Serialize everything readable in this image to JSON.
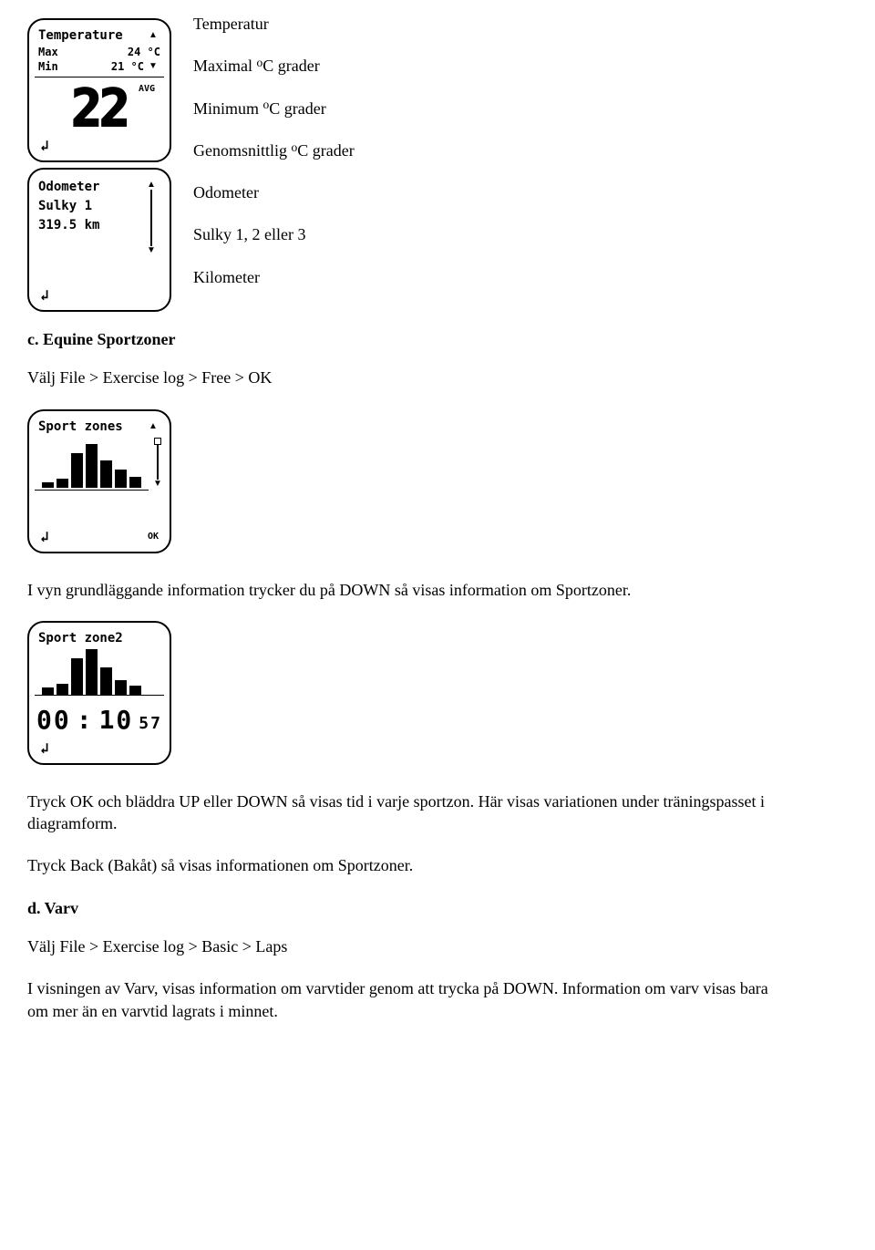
{
  "section_a": {
    "lcd_temperature": {
      "title": "Temperature",
      "row1_label": "Max",
      "row1_value": "24 °C",
      "row2_label": "Min",
      "row2_value": "21 °C",
      "big_value": "22",
      "suffix": "AVG"
    },
    "lcd_odometer": {
      "title": "Odometer",
      "row1": "Sulky 1",
      "row2": "319.5 km"
    },
    "text": {
      "l1": "Temperatur",
      "l2_pre": "Maximal ",
      "l2_sup": "o",
      "l2_post": "C grader",
      "l3_pre": "Minimum ",
      "l3_sup": "o",
      "l3_post": "C grader",
      "l4_pre": "Genomsnittlig ",
      "l4_sup": "o",
      "l4_post": "C grader",
      "l5": "Odometer",
      "l6": "Sulky 1, 2 eller 3",
      "l7": "Kilometer"
    }
  },
  "section_c": {
    "heading": "c. Equine Sportzoner",
    "sub": "Välj File > Exercise log > Free > OK",
    "lcd_sportzones": {
      "title": "Sport zones",
      "bars": [
        6,
        10,
        38,
        48,
        30,
        20,
        12
      ],
      "ok": "OK"
    },
    "p1": "I vyn grundläggande information trycker du på DOWN så visas information om Sportzoner.",
    "lcd_sportzone2": {
      "title": "Sport zone2",
      "bars": [
        8,
        12,
        40,
        50,
        30,
        16,
        10
      ],
      "time_hh": "00",
      "time_mm": "10",
      "time_ss": "57"
    },
    "p2": "Tryck OK och bläddra UP eller DOWN så visas tid i varje sportzon. Här visas variationen under träningspasset i diagramform.",
    "p3": "Tryck Back (Bakåt) så visas informationen om Sportzoner."
  },
  "section_d": {
    "heading": "d. Varv",
    "sub": "Välj File > Exercise log > Basic > Laps",
    "p1": "I visningen av Varv, visas information om varvtider genom att trycka på DOWN. Information om varv visas bara om mer än en varvtid lagrats i minnet."
  }
}
